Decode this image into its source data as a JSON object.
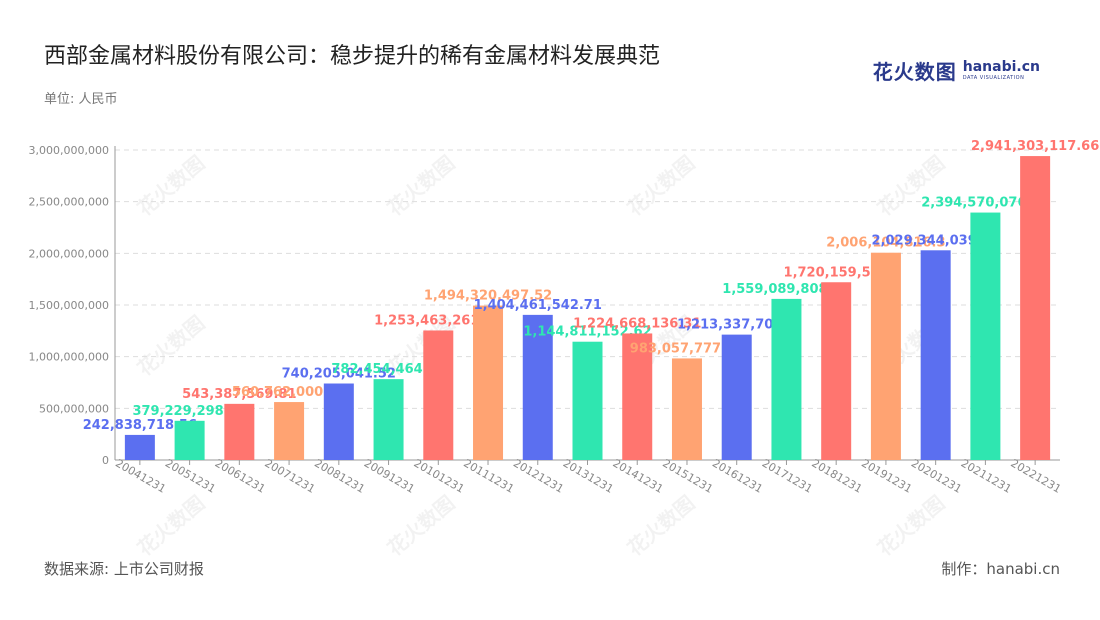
{
  "header": {
    "title": "西部金属材料股份有限公司：稳步提升的稀有金属材料发展典范",
    "unit": "单位: 人民币"
  },
  "brand": {
    "cn": "花火数图",
    "en": "hanabi.cn",
    "sub": "DATA VISUALIZATION"
  },
  "footer": {
    "source": "数据来源: 上市公司财报",
    "maker": "制作：hanabi.cn"
  },
  "watermark": "花火数图",
  "colors": {
    "palette": [
      "#5b6ff0",
      "#2fe6b0",
      "#ff756f",
      "#ffa372"
    ],
    "grid": "#dddddd",
    "axis": "#999999",
    "tick": "#888888"
  },
  "chart_data": {
    "type": "bar",
    "categories": [
      "20041231",
      "20051231",
      "20061231",
      "20071231",
      "20081231",
      "20091231",
      "20101231",
      "20111231",
      "20121231",
      "20131231",
      "20141231",
      "20151231",
      "20161231",
      "20171231",
      "20181231",
      "20191231",
      "20201231",
      "20211231",
      "20221231"
    ],
    "values": [
      242838718.56,
      379229298.26,
      543387569.81,
      560762000.79,
      740205041.52,
      782454464.9,
      1253463261.92,
      1494320497.52,
      1404461542.71,
      1144811152.62,
      1224668136.31,
      983057777.29,
      1213337701.7,
      1559089808.63,
      1720159583,
      2006104816.3,
      2029344039.81,
      2394570076.87,
      2941303117.66
    ],
    "labels": [
      "242,838,718.56",
      "379,229,298.26",
      "543,387,569.81",
      "560,762,000.79",
      "740,205,041.52",
      "782,454,464.90",
      "1,253,463,261.92",
      "1,494,320,497.52",
      "1,404,461,542.71",
      "1,144,811,152.62",
      "1,224,668,136.31",
      "983,057,777.29",
      "1,213,337,701.7",
      "1,559,089,808.63",
      "1,720,159,583",
      "2,006,104,816.3",
      "2,029,344,039.81",
      "2,394,570,076.87",
      "2,941,303,117.66"
    ],
    "yticks": [
      "0",
      "500,000,000",
      "1,000,000,000",
      "1,500,000,000",
      "2,000,000,000",
      "2,500,000,000",
      "3,000,000,000"
    ],
    "ylim": [
      0,
      3000000000
    ],
    "grid": true,
    "legend": "none"
  }
}
